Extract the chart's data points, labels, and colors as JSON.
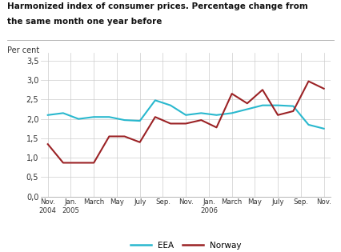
{
  "title_line1": "Harmonized index of consumer prices. Percentage change from",
  "title_line2": "the same month one year before",
  "per_cent_label": "Per cent",
  "ylim": [
    0.0,
    3.7
  ],
  "yticks": [
    0.0,
    0.5,
    1.0,
    1.5,
    2.0,
    2.5,
    3.0,
    3.5
  ],
  "ytick_labels": [
    "0,0",
    "0,5",
    "1,0",
    "1,5",
    "2,0",
    "2,5",
    "3,0",
    "3,5"
  ],
  "x_tick_labels": [
    "Nov.\n2004",
    "Jan.\n2005",
    "March",
    "May",
    "July",
    "Sep.",
    "Nov.",
    "Jan.\n2006",
    "March",
    "May",
    "July",
    "Sep.",
    "Nov."
  ],
  "eea_color": "#29B8CE",
  "norway_color": "#9B2225",
  "background_color": "#ffffff",
  "grid_color": "#cccccc",
  "eea_values": [
    2.1,
    2.15,
    2.0,
    2.05,
    2.05,
    1.97,
    1.95,
    2.48,
    2.35,
    2.1,
    2.15,
    2.1,
    2.15,
    2.25,
    2.35,
    2.35,
    2.33,
    1.85,
    1.75
  ],
  "norway_values": [
    1.35,
    0.87,
    0.87,
    0.87,
    1.55,
    1.55,
    1.4,
    2.05,
    1.88,
    1.88,
    1.97,
    1.78,
    2.65,
    2.4,
    2.75,
    2.1,
    2.2,
    2.97,
    2.78
  ],
  "n_ticks": 13,
  "legend_eea": "EEA",
  "legend_norway": "Norway"
}
